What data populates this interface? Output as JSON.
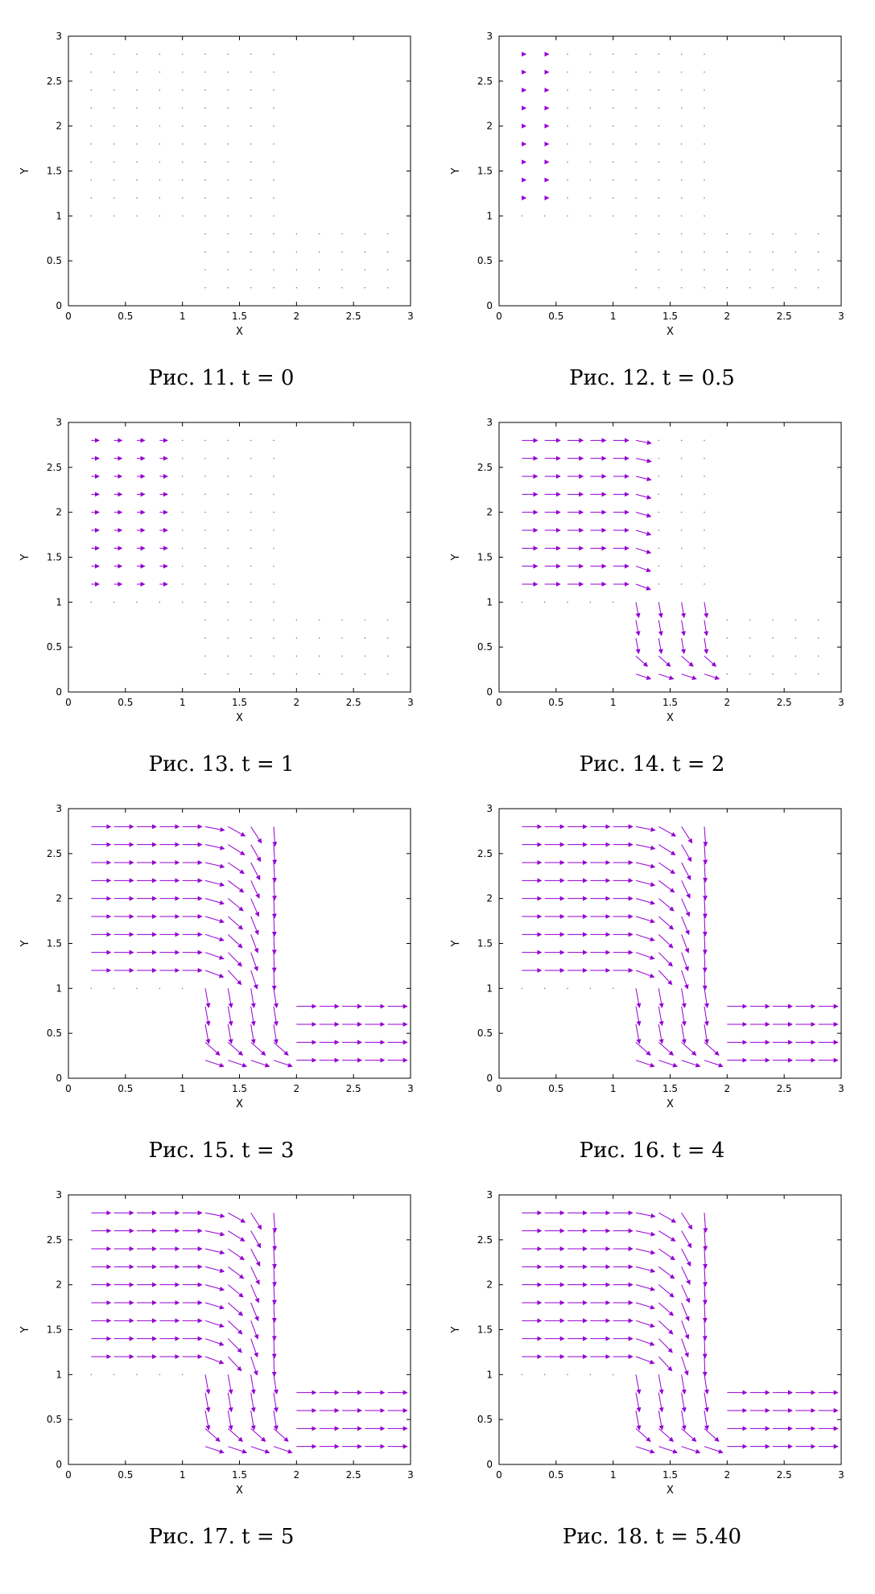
{
  "chart_data": [
    {
      "type": "vector-field",
      "caption": "Рис. 11. t = 0",
      "t": 0,
      "xlabel": "X",
      "ylabel": "Y",
      "xlim": [
        0,
        3
      ],
      "ylim": [
        0,
        3
      ],
      "xticks": [
        "0",
        "0.5",
        "1",
        "1.5",
        "2",
        "2.5",
        "3"
      ],
      "yticks": [
        "0",
        "0.5",
        "1",
        "1.5",
        "2",
        "2.5",
        "3"
      ],
      "grid": false,
      "arrow_color": "#9400d3"
    },
    {
      "type": "vector-field",
      "caption": "Рис. 12. t = 0.5",
      "t": 0.5,
      "xlabel": "X",
      "ylabel": "Y",
      "xlim": [
        0,
        3
      ],
      "ylim": [
        0,
        3
      ],
      "xticks": [
        "0",
        "0.5",
        "1",
        "1.5",
        "2",
        "2.5",
        "3"
      ],
      "yticks": [
        "0",
        "0.5",
        "1",
        "1.5",
        "2",
        "2.5",
        "3"
      ],
      "grid": false,
      "arrow_color": "#9400d3"
    },
    {
      "type": "vector-field",
      "caption": "Рис. 13. t = 1",
      "t": 1,
      "xlabel": "X",
      "ylabel": "Y",
      "xlim": [
        0,
        3
      ],
      "ylim": [
        0,
        3
      ],
      "xticks": [
        "0",
        "0.5",
        "1",
        "1.5",
        "2",
        "2.5",
        "3"
      ],
      "yticks": [
        "0",
        "0.5",
        "1",
        "1.5",
        "2",
        "2.5",
        "3"
      ],
      "grid": false,
      "arrow_color": "#9400d3"
    },
    {
      "type": "vector-field",
      "caption": "Рис. 14. t = 2",
      "t": 2,
      "xlabel": "X",
      "ylabel": "Y",
      "xlim": [
        0,
        3
      ],
      "ylim": [
        0,
        3
      ],
      "xticks": [
        "0",
        "0.5",
        "1",
        "1.5",
        "2",
        "2.5",
        "3"
      ],
      "yticks": [
        "0",
        "0.5",
        "1",
        "1.5",
        "2",
        "2.5",
        "3"
      ],
      "grid": false,
      "arrow_color": "#9400d3"
    },
    {
      "type": "vector-field",
      "caption": "Рис. 15. t = 3",
      "t": 3,
      "xlabel": "X",
      "ylabel": "Y",
      "xlim": [
        0,
        3
      ],
      "ylim": [
        0,
        3
      ],
      "xticks": [
        "0",
        "0.5",
        "1",
        "1.5",
        "2",
        "2.5",
        "3"
      ],
      "yticks": [
        "0",
        "0.5",
        "1",
        "1.5",
        "2",
        "2.5",
        "3"
      ],
      "grid": false,
      "arrow_color": "#9400d3"
    },
    {
      "type": "vector-field",
      "caption": "Рис. 16. t = 4",
      "t": 4,
      "xlabel": "X",
      "ylabel": "Y",
      "xlim": [
        0,
        3
      ],
      "ylim": [
        0,
        3
      ],
      "xticks": [
        "0",
        "0.5",
        "1",
        "1.5",
        "2",
        "2.5",
        "3"
      ],
      "yticks": [
        "0",
        "0.5",
        "1",
        "1.5",
        "2",
        "2.5",
        "3"
      ],
      "grid": false,
      "arrow_color": "#9400d3"
    },
    {
      "type": "vector-field",
      "caption": "Рис. 17. t = 5",
      "t": 5,
      "xlabel": "X",
      "ylabel": "Y",
      "xlim": [
        0,
        3
      ],
      "ylim": [
        0,
        3
      ],
      "xticks": [
        "0",
        "0.5",
        "1",
        "1.5",
        "2",
        "2.5",
        "3"
      ],
      "yticks": [
        "0",
        "0.5",
        "1",
        "1.5",
        "2",
        "2.5",
        "3"
      ],
      "grid": false,
      "arrow_color": "#9400d3"
    },
    {
      "type": "vector-field",
      "caption": "Рис. 18. t = 5.40",
      "t": 5.4,
      "xlabel": "X",
      "ylabel": "Y",
      "xlim": [
        0,
        3
      ],
      "ylim": [
        0,
        3
      ],
      "xticks": [
        "0",
        "0.5",
        "1",
        "1.5",
        "2",
        "2.5",
        "3"
      ],
      "yticks": [
        "0",
        "0.5",
        "1",
        "1.5",
        "2",
        "2.5",
        "3"
      ],
      "grid": false,
      "arrow_color": "#9400d3"
    }
  ]
}
